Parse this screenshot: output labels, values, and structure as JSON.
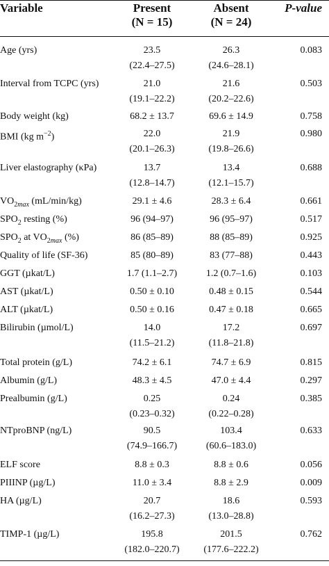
{
  "header": {
    "variable": "Variable",
    "present_line1": "Present",
    "present_line2": "(N = 15)",
    "absent_line1": "Absent",
    "absent_line2": "(N = 24)",
    "pvalue": "P-value"
  },
  "rows": [
    {
      "variable": "Age (yrs)",
      "present": [
        "23.5",
        "(22.4–27.5)"
      ],
      "absent": [
        "26.3",
        "(24.6–28.1)"
      ],
      "p": "0.083"
    },
    {
      "variable": "Interval from TCPC (yrs)",
      "present": [
        "21.0",
        "(19.1–22.2)"
      ],
      "absent": [
        "21.6",
        "(20.2–22.6)"
      ],
      "p": "0.503"
    },
    {
      "variable": "Body weight (kg)",
      "present": [
        "68.2 ± 13.7"
      ],
      "absent": [
        "69.6 ± 14.9"
      ],
      "p": "0.758"
    },
    {
      "variable": "BMI (kg m−2)",
      "present": [
        "22.0",
        "(20.1–26.3)"
      ],
      "absent": [
        "21.9",
        "(19.8–26.6)"
      ],
      "p": "0.980"
    },
    {
      "variable": "Liver elastography (κPa)",
      "present": [
        "13.7",
        "(12.8–14.7)"
      ],
      "absent": [
        "13.4",
        "(12.1–15.7)"
      ],
      "p": "0.688"
    },
    {
      "variable": "VO2max (mL/min/kg)",
      "present": [
        "29.1 ± 4.6"
      ],
      "absent": [
        "28.3 ± 6.4"
      ],
      "p": "0.661"
    },
    {
      "variable": "SPO2 resting (%)",
      "present": [
        "96 (94–97)"
      ],
      "absent": [
        "96 (95–97)"
      ],
      "p": "0.517"
    },
    {
      "variable": "SPO2 at VO2max (%)",
      "present": [
        "86 (85–89)"
      ],
      "absent": [
        "88 (85–89)"
      ],
      "p": "0.925"
    },
    {
      "variable": "Quality of life (SF-36)",
      "present": [
        "85 (80–89)"
      ],
      "absent": [
        "83 (77–88)"
      ],
      "p": "0.443"
    },
    {
      "variable": "GGT (µkat/L)",
      "present": [
        "1.7 (1.1–2.7)"
      ],
      "absent": [
        "1.2 (0.7–1.6)"
      ],
      "p": "0.103"
    },
    {
      "variable": "AST (µkat/L)",
      "present": [
        "0.50 ± 0.10"
      ],
      "absent": [
        "0.48 ± 0.15"
      ],
      "p": "0.544"
    },
    {
      "variable": "ALT (µkat/L)",
      "present": [
        "0.50 ± 0.16"
      ],
      "absent": [
        "0.47 ± 0.18"
      ],
      "p": "0.665"
    },
    {
      "variable": "Bilirubin (µmol/L)",
      "present": [
        "14.0",
        "(11.5–21.2)"
      ],
      "absent": [
        "17.2",
        "(11.8–21.8)"
      ],
      "p": "0.697"
    },
    {
      "variable": "Total protein (g/L)",
      "present": [
        "74.2 ± 6.1"
      ],
      "absent": [
        "74.7 ± 6.9"
      ],
      "p": "0.815"
    },
    {
      "variable": "Albumin (g/L)",
      "present": [
        "48.3 ± 4.5"
      ],
      "absent": [
        "47.0 ± 4.4"
      ],
      "p": "0.297"
    },
    {
      "variable": "Prealbumin (g/L)",
      "present": [
        "0.25",
        "(0.23–0.32)"
      ],
      "absent": [
        "0.24",
        "(0.22–0.28)"
      ],
      "p": "0.385"
    },
    {
      "variable": "NTproBNP (ng/L)",
      "present": [
        "90.5",
        "(74.9–166.7)"
      ],
      "absent": [
        "103.4",
        "(60.6–183.0)"
      ],
      "p": "0.633"
    },
    {
      "variable": "ELF score",
      "present": [
        "8.8 ± 0.3"
      ],
      "absent": [
        "8.8 ± 0.6"
      ],
      "p": "0.056"
    },
    {
      "variable": "PIIINP (µg/L)",
      "present": [
        "11.0 ± 3.4"
      ],
      "absent": [
        "8.8 ± 2.9"
      ],
      "p": "0.009"
    },
    {
      "variable": "HA (µg/L)",
      "present": [
        "20.7",
        "(16.2–27.3)"
      ],
      "absent": [
        "18.6",
        "(13.0–28.8)"
      ],
      "p": "0.593"
    },
    {
      "variable": "TIMP-1 (µg/L)",
      "present": [
        "195.8",
        "(182.0–220.7)"
      ],
      "absent": [
        "201.5",
        "(177.6–222.2)"
      ],
      "p": "0.762"
    }
  ]
}
